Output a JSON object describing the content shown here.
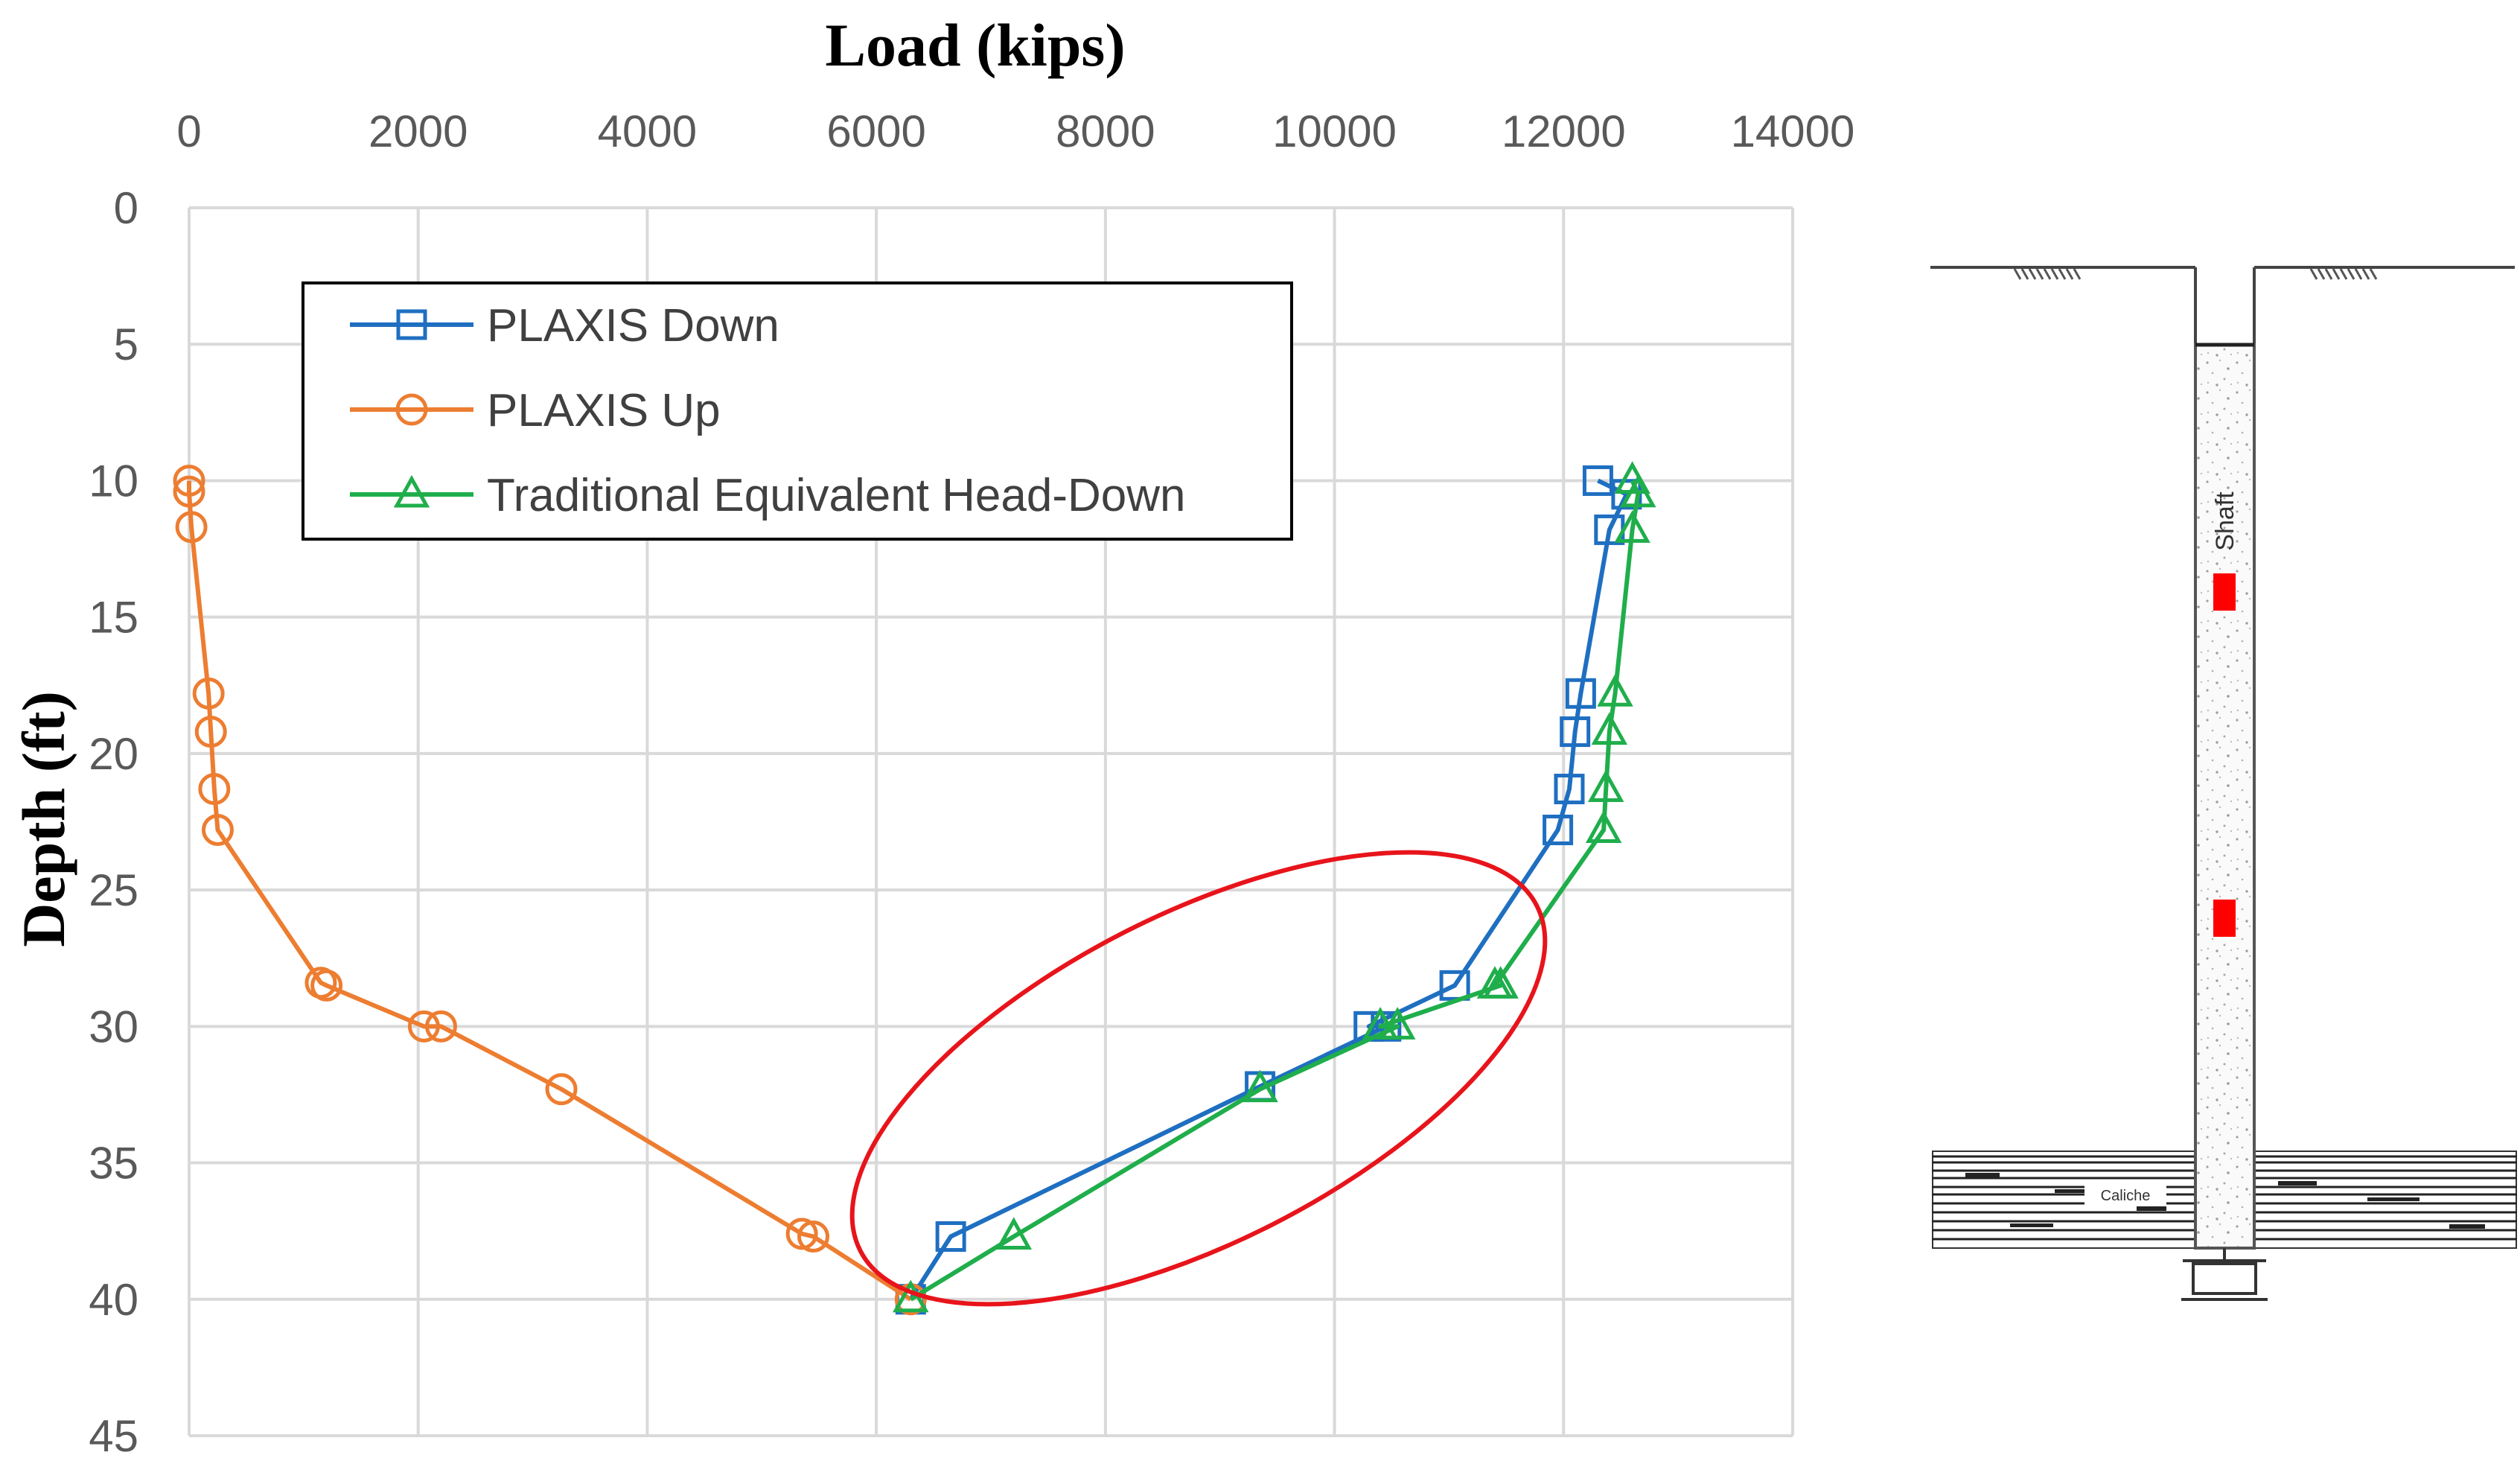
{
  "chart_data": {
    "type": "line",
    "xlabel": "Load (kips)",
    "ylabel": "Depth (ft)",
    "xlim": [
      0,
      14000
    ],
    "ylim": [
      0,
      45
    ],
    "x_axis_position": "top",
    "y_axis_inverted": true,
    "x_ticks": [
      0,
      2000,
      4000,
      6000,
      8000,
      10000,
      12000,
      14000
    ],
    "y_ticks": [
      0,
      5,
      10,
      15,
      20,
      25,
      30,
      35,
      40,
      45
    ],
    "grid": true,
    "legend_position": "top-left",
    "series": [
      {
        "name": "PLAXIS Down",
        "color": "#1f6fc1",
        "marker": "square",
        "points": [
          {
            "load": 12300,
            "depth": 10
          },
          {
            "load": 12550,
            "depth": 10.5
          },
          {
            "load": 12400,
            "depth": 11.8
          },
          {
            "load": 12150,
            "depth": 17.8
          },
          {
            "load": 12100,
            "depth": 19.2
          },
          {
            "load": 12050,
            "depth": 21.3
          },
          {
            "load": 11950,
            "depth": 22.8
          },
          {
            "load": 11050,
            "depth": 28.5
          },
          {
            "load": 10300,
            "depth": 30
          },
          {
            "load": 10450,
            "depth": 30
          },
          {
            "load": 9350,
            "depth": 32.2
          },
          {
            "load": 6650,
            "depth": 37.7
          },
          {
            "load": 6300,
            "depth": 40
          }
        ]
      },
      {
        "name": "PLAXIS Up",
        "color": "#ed7d31",
        "marker": "circle",
        "points": [
          {
            "load": 0,
            "depth": 10
          },
          {
            "load": 0,
            "depth": 10.4
          },
          {
            "load": 20,
            "depth": 11.7
          },
          {
            "load": 170,
            "depth": 17.8
          },
          {
            "load": 190,
            "depth": 19.2
          },
          {
            "load": 220,
            "depth": 21.3
          },
          {
            "load": 250,
            "depth": 22.8
          },
          {
            "load": 1150,
            "depth": 28.4
          },
          {
            "load": 1200,
            "depth": 28.5
          },
          {
            "load": 2050,
            "depth": 30
          },
          {
            "load": 2200,
            "depth": 30
          },
          {
            "load": 3250,
            "depth": 32.3
          },
          {
            "load": 5350,
            "depth": 37.6
          },
          {
            "load": 5450,
            "depth": 37.7
          },
          {
            "load": 6300,
            "depth": 40
          }
        ]
      },
      {
        "name": "Traditional Equivalent Head-Down",
        "color": "#1fae4b",
        "marker": "triangle",
        "points": [
          {
            "load": 12600,
            "depth": 10
          },
          {
            "load": 12650,
            "depth": 10.5
          },
          {
            "load": 12600,
            "depth": 11.8
          },
          {
            "load": 12450,
            "depth": 17.8
          },
          {
            "load": 12400,
            "depth": 19.2
          },
          {
            "load": 12370,
            "depth": 21.3
          },
          {
            "load": 12350,
            "depth": 22.8
          },
          {
            "load": 11400,
            "depth": 28.5
          },
          {
            "load": 11450,
            "depth": 28.5
          },
          {
            "load": 10400,
            "depth": 30
          },
          {
            "load": 10550,
            "depth": 30
          },
          {
            "load": 9350,
            "depth": 32.3
          },
          {
            "load": 7200,
            "depth": 37.7
          },
          {
            "load": 6300,
            "depth": 40
          }
        ]
      }
    ],
    "annotations": [
      {
        "type": "ellipse",
        "color": "#e8141b",
        "center": {
          "load": 8900,
          "depth": 34.3
        }
      }
    ]
  },
  "diagram": {
    "shaft_label": "Shaft",
    "layer_label": "Caliche",
    "gauge_color": "#ff0000"
  }
}
